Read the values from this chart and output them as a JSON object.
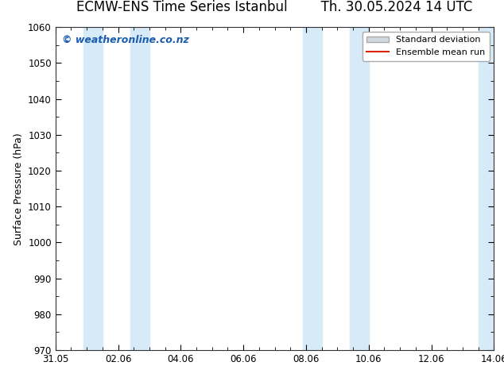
{
  "title_left": "ECMW-ENS Time Series Istanbul",
  "title_right": "Th. 30.05.2024 14 UTC",
  "ylabel": "Surface Pressure (hPa)",
  "ylim": [
    970,
    1060
  ],
  "yticks": [
    970,
    980,
    990,
    1000,
    1010,
    1020,
    1030,
    1040,
    1050,
    1060
  ],
  "xlim": [
    0,
    14
  ],
  "xtick_labels": [
    "31.05",
    "02.06",
    "04.06",
    "06.06",
    "08.06",
    "10.06",
    "12.06",
    "14.06"
  ],
  "xtick_positions": [
    0,
    2,
    4,
    6,
    8,
    10,
    12,
    14
  ],
  "shaded_bands": [
    {
      "x_start": 0.9,
      "x_end": 1.5
    },
    {
      "x_start": 2.4,
      "x_end": 3.0
    },
    {
      "x_start": 7.9,
      "x_end": 8.5
    },
    {
      "x_start": 9.4,
      "x_end": 10.0
    },
    {
      "x_start": 13.5,
      "x_end": 14.0
    }
  ],
  "shade_color": "#d6eaf8",
  "watermark_text": "© weatheronline.co.nz",
  "watermark_color": "#1a5cb0",
  "legend_std_label": "Standard deviation",
  "legend_mean_label": "Ensemble mean run",
  "legend_std_facecolor": "#d0d8e0",
  "legend_std_edgecolor": "#aaaaaa",
  "legend_mean_color": "#dd2200",
  "background_color": "#ffffff",
  "plot_bg_color": "#ffffff",
  "title_fontsize": 12,
  "axis_fontsize": 9,
  "tick_fontsize": 8.5,
  "watermark_fontsize": 9,
  "legend_fontsize": 8
}
